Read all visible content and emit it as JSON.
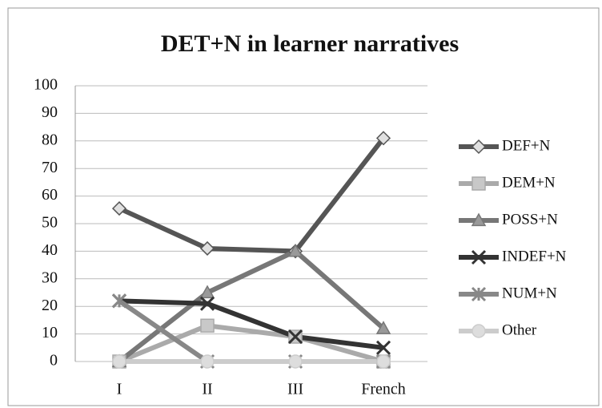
{
  "chart_data": {
    "type": "line",
    "title": "DET+N in learner narratives",
    "categories": [
      "I",
      "II",
      "III",
      "French"
    ],
    "series": [
      {
        "name": "DEF+N",
        "color": "#555555",
        "marker": "diamond",
        "values": [
          55.5,
          41,
          40,
          81
        ]
      },
      {
        "name": "DEM+N",
        "color": "#aaaaaa",
        "marker": "square",
        "values": [
          0,
          13,
          9,
          0
        ]
      },
      {
        "name": "POSS+N",
        "color": "#777777",
        "marker": "triangle",
        "values": [
          0,
          25,
          40,
          12
        ]
      },
      {
        "name": "INDEF+N",
        "color": "#333333",
        "marker": "x",
        "values": [
          22,
          21,
          9,
          5
        ]
      },
      {
        "name": "NUM+N",
        "color": "#888888",
        "marker": "star",
        "values": [
          22,
          0,
          0,
          0
        ]
      },
      {
        "name": "Other",
        "color": "#cccccc",
        "marker": "circle",
        "values": [
          0,
          0,
          0,
          0
        ]
      }
    ],
    "ylim": [
      0,
      100
    ],
    "yticks": [
      0,
      10,
      20,
      30,
      40,
      50,
      60,
      70,
      80,
      90,
      100
    ],
    "grid": true,
    "legend": "right"
  }
}
